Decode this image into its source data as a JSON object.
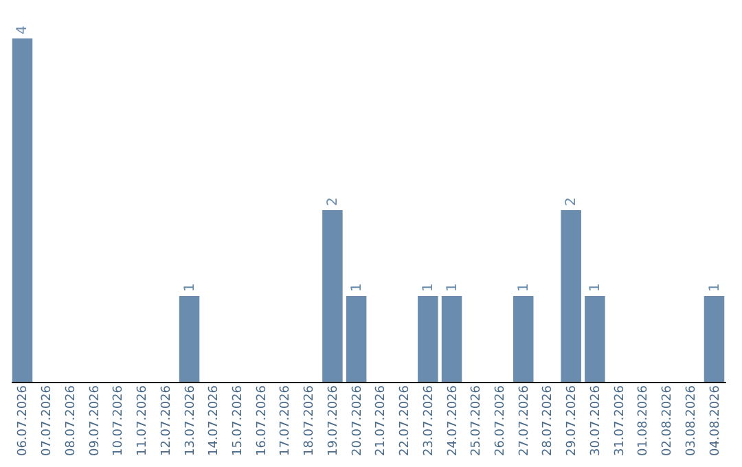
{
  "chart_data": {
    "type": "bar",
    "categories": [
      "06.07.2026",
      "07.07.2026",
      "08.07.2026",
      "09.07.2026",
      "10.07.2026",
      "11.07.2026",
      "12.07.2026",
      "13.07.2026",
      "14.07.2026",
      "15.07.2026",
      "16.07.2026",
      "17.07.2026",
      "18.07.2026",
      "19.07.2026",
      "20.07.2026",
      "21.07.2026",
      "22.07.2026",
      "23.07.2026",
      "24.07.2026",
      "25.07.2026",
      "26.07.2026",
      "27.07.2026",
      "28.07.2026",
      "29.07.2026",
      "30.07.2026",
      "31.07.2026",
      "01.08.2026",
      "02.08.2026",
      "03.08.2026",
      "04.08.2026"
    ],
    "values": [
      4,
      0,
      0,
      0,
      0,
      0,
      0,
      1,
      0,
      0,
      0,
      0,
      0,
      2,
      1,
      0,
      0,
      1,
      1,
      0,
      0,
      1,
      0,
      2,
      1,
      0,
      0,
      0,
      0,
      1
    ],
    "value_labels": [
      "4",
      null,
      null,
      null,
      null,
      null,
      null,
      "1",
      null,
      null,
      null,
      null,
      null,
      "2",
      "1",
      null,
      null,
      "1",
      "1",
      null,
      null,
      "1",
      null,
      "2",
      "1",
      null,
      null,
      null,
      null,
      "1"
    ],
    "color": "#6a8cae",
    "tick_labels": "x",
    "grid": false
  }
}
